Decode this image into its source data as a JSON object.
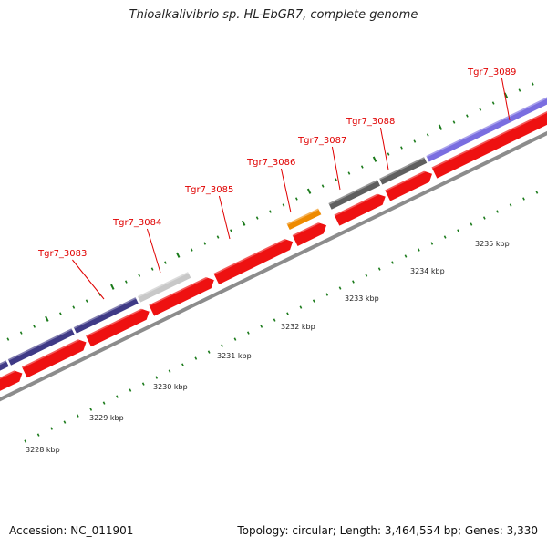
{
  "title": "Thioalkalivibrio sp. HL-EbGR7, complete genome",
  "footer": {
    "accession": "Accession: NC_011901",
    "topology": "Topology: circular; Length: 3,464,554 bp; Genes: 3,330"
  },
  "colors": {
    "cds": "#ee1111",
    "gene_dark_purple": "#3f3a86",
    "gene_light_purple": "#7a6ee0",
    "gene_light_gray": "#c8c8c8",
    "gene_dark_gray": "#5f5f5f",
    "gene_orange": "#ee8a00",
    "backbone": "#8c8c8c",
    "tick": "#1a7a1a",
    "label": "#e00000"
  },
  "gene_labels": [
    "Tgr7_3083",
    "Tgr7_3084",
    "Tgr7_3085",
    "Tgr7_3086",
    "Tgr7_3087",
    "Tgr7_3088",
    "Tgr7_3089"
  ],
  "kbp_labels": [
    "3228 kbp",
    "3229 kbp",
    "3230 kbp",
    "3231 kbp",
    "3232 kbp",
    "3233 kbp",
    "3234 kbp",
    "3235 kbp"
  ]
}
